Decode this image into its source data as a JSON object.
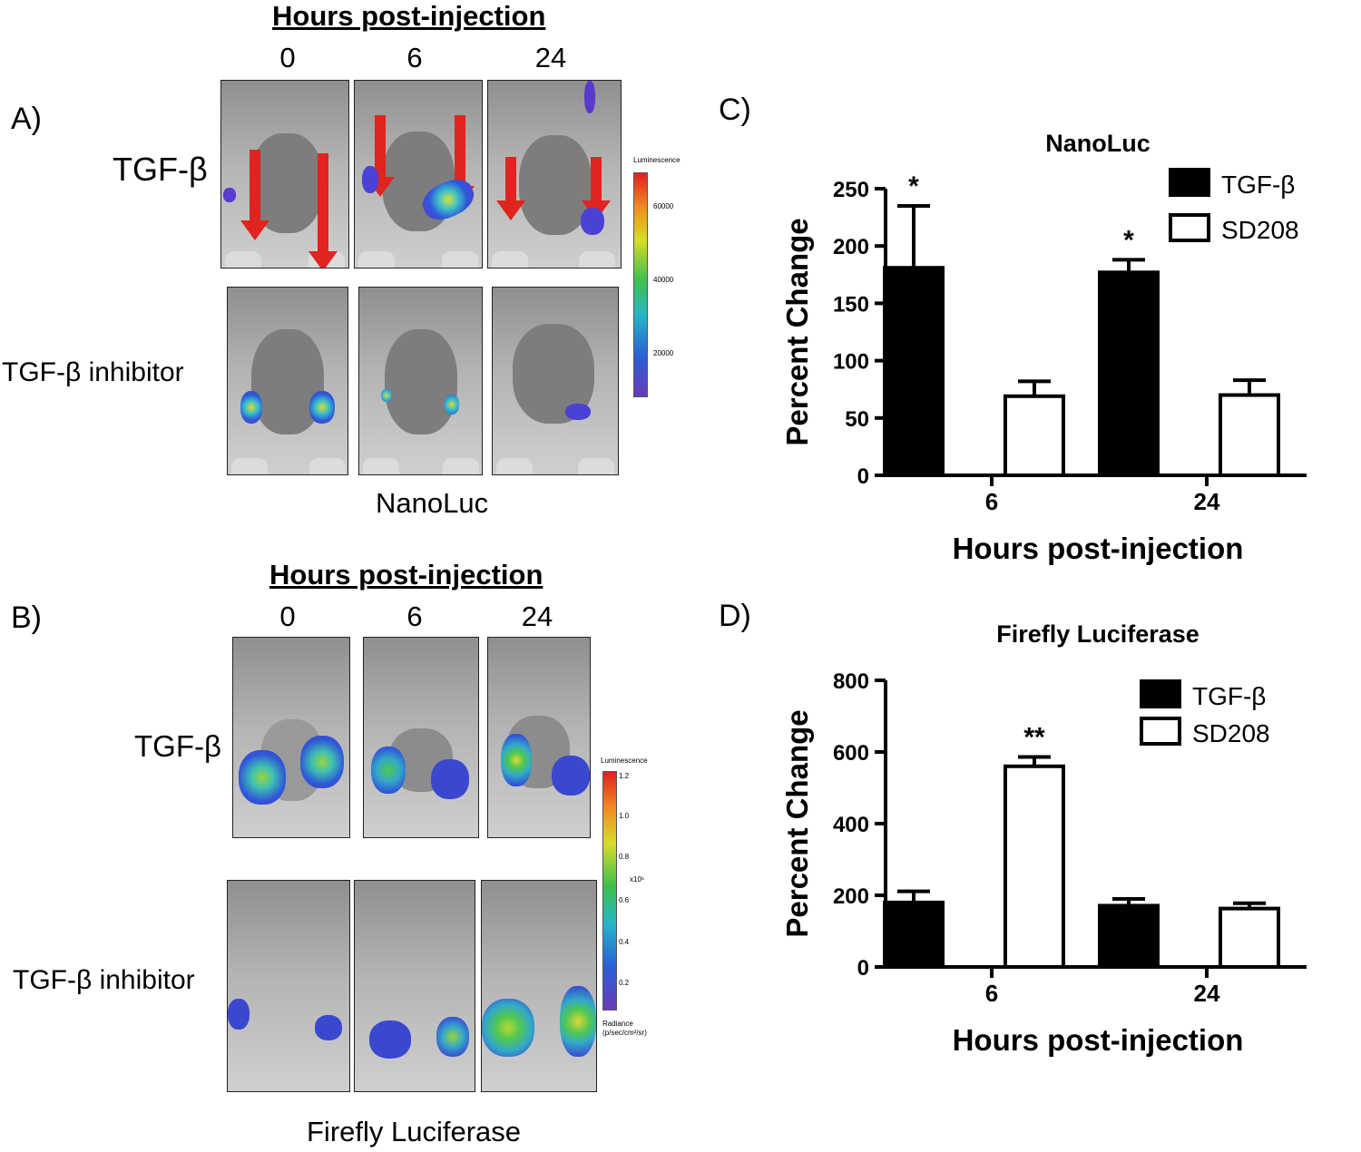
{
  "panel_a": {
    "letter": "A)",
    "header": "Hours post-injection",
    "timepoints": [
      "0",
      "6",
      "24"
    ],
    "row_labels": [
      "TGF-β",
      "TGF-β inhibitor"
    ],
    "caption": "NanoLuc",
    "colorbar": {
      "title": "Luminescence",
      "ticks": [
        "60000",
        "40000",
        "20000"
      ]
    }
  },
  "panel_b": {
    "letter": "B)",
    "header": "Hours post-injection",
    "timepoints": [
      "0",
      "6",
      "24"
    ],
    "row_labels": [
      "TGF-β",
      "TGF-β inhibitor"
    ],
    "caption": "Firefly Luciferase",
    "colorbar": {
      "title": "Luminescence",
      "ticks": [
        "1.2",
        "1.0",
        "0.8",
        "x10⁶",
        "0.6",
        "0.4",
        "0.2"
      ],
      "unit_label": "Radiance",
      "unit": "(p/sec/cm²/sr)"
    }
  },
  "chart_data": [
    {
      "panel": "C)",
      "type": "bar",
      "title": "NanoLuc",
      "xlabel": "Hours post-injection",
      "ylabel": "Percent Change",
      "categories": [
        "6",
        "24"
      ],
      "ylim": [
        0,
        250
      ],
      "yticks": [
        "0",
        "50",
        "100",
        "150",
        "200",
        "250"
      ],
      "series": [
        {
          "name": "TGF-β",
          "fill": "#000000",
          "values": [
            181,
            177
          ],
          "errors": [
            54,
            11
          ],
          "sig": [
            "*",
            "*"
          ]
        },
        {
          "name": "SD208",
          "fill": "#ffffff",
          "values": [
            69,
            70
          ],
          "errors": [
            13,
            13
          ],
          "sig": [
            "",
            ""
          ]
        }
      ],
      "legend": "top-right"
    },
    {
      "panel": "D)",
      "type": "bar",
      "title": "Firefly Luciferase",
      "xlabel": "Hours post-injection",
      "ylabel": "Percent Change",
      "categories": [
        "6",
        "24"
      ],
      "ylim": [
        0,
        800
      ],
      "yticks": [
        "0",
        "200",
        "400",
        "600",
        "800"
      ],
      "series": [
        {
          "name": "TGF-β",
          "fill": "#000000",
          "values": [
            180,
            171
          ],
          "errors": [
            31,
            19
          ],
          "sig": [
            "",
            ""
          ]
        },
        {
          "name": "SD208",
          "fill": "#ffffff",
          "values": [
            560,
            163
          ],
          "errors": [
            26,
            15
          ],
          "sig": [
            "**",
            ""
          ]
        }
      ],
      "legend": "top-right"
    }
  ]
}
